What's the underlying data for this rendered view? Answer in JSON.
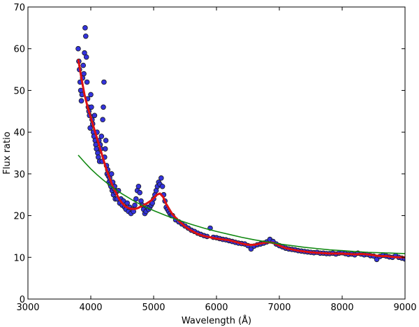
{
  "chart_data": {
    "type": "scatter",
    "title": "",
    "xlabel": "Wavelength (Å)",
    "ylabel": "Flux ratio",
    "xlim": [
      3000,
      9000
    ],
    "ylim": [
      0,
      70
    ],
    "xticks": [
      3000,
      4000,
      5000,
      6000,
      7000,
      8000,
      9000
    ],
    "yticks": [
      0,
      10,
      20,
      30,
      40,
      50,
      60,
      70
    ],
    "grid": false,
    "legend": "none",
    "colors": {
      "scatter_fill": "#3333dd",
      "scatter_edge": "#1a1a1a",
      "smooth_line": "#dd1111",
      "fit_line": "#118811"
    },
    "series": [
      {
        "kind": "scatter",
        "points": [
          [
            3800,
            60
          ],
          [
            3810,
            57
          ],
          [
            3820,
            55
          ],
          [
            3830,
            52
          ],
          [
            3840,
            50
          ],
          [
            3850,
            47.5
          ],
          [
            3860,
            49
          ],
          [
            3870,
            53
          ],
          [
            3880,
            56
          ],
          [
            3890,
            54
          ],
          [
            3900,
            59
          ],
          [
            3910,
            65
          ],
          [
            3920,
            63
          ],
          [
            3930,
            58
          ],
          [
            3940,
            52
          ],
          [
            3950,
            48
          ],
          [
            3960,
            46
          ],
          [
            3970,
            45
          ],
          [
            3980,
            44
          ],
          [
            3990,
            41
          ],
          [
            4000,
            49
          ],
          [
            4010,
            46
          ],
          [
            4020,
            43
          ],
          [
            4030,
            42
          ],
          [
            4040,
            40
          ],
          [
            4050,
            39
          ],
          [
            4060,
            44
          ],
          [
            4070,
            38
          ],
          [
            4080,
            37
          ],
          [
            4090,
            36
          ],
          [
            4100,
            40
          ],
          [
            4110,
            35
          ],
          [
            4120,
            34
          ],
          [
            4130,
            38
          ],
          [
            4140,
            33
          ],
          [
            4150,
            37
          ],
          [
            4160,
            36
          ],
          [
            4170,
            39
          ],
          [
            4180,
            33
          ],
          [
            4190,
            43
          ],
          [
            4200,
            46
          ],
          [
            4210,
            52
          ],
          [
            4220,
            34
          ],
          [
            4230,
            36
          ],
          [
            4240,
            38
          ],
          [
            4250,
            32
          ],
          [
            4260,
            30
          ],
          [
            4270,
            31
          ],
          [
            4280,
            29.5
          ],
          [
            4290,
            28
          ],
          [
            4300,
            29
          ],
          [
            4310,
            27.5
          ],
          [
            4320,
            27
          ],
          [
            4330,
            30
          ],
          [
            4340,
            26
          ],
          [
            4350,
            28
          ],
          [
            4360,
            25
          ],
          [
            4370,
            26.5
          ],
          [
            4380,
            27
          ],
          [
            4390,
            24
          ],
          [
            4400,
            25.5
          ],
          [
            4420,
            24
          ],
          [
            4440,
            26
          ],
          [
            4460,
            23
          ],
          [
            4480,
            24
          ],
          [
            4500,
            22.5
          ],
          [
            4520,
            23.5
          ],
          [
            4540,
            22
          ],
          [
            4560,
            21.5
          ],
          [
            4580,
            23
          ],
          [
            4600,
            21
          ],
          [
            4620,
            22
          ],
          [
            4640,
            20.5
          ],
          [
            4660,
            21.5
          ],
          [
            4680,
            21
          ],
          [
            4700,
            22.5
          ],
          [
            4720,
            24
          ],
          [
            4740,
            26
          ],
          [
            4760,
            27
          ],
          [
            4780,
            25.5
          ],
          [
            4800,
            23.5
          ],
          [
            4820,
            22.5
          ],
          [
            4840,
            21.5
          ],
          [
            4860,
            20.5
          ],
          [
            4880,
            21
          ],
          [
            4900,
            22
          ],
          [
            4920,
            21.5
          ],
          [
            4940,
            22
          ],
          [
            4960,
            22.5
          ],
          [
            4980,
            23
          ],
          [
            5000,
            24
          ],
          [
            5020,
            25
          ],
          [
            5040,
            26
          ],
          [
            5060,
            27
          ],
          [
            5080,
            28
          ],
          [
            5100,
            27.5
          ],
          [
            5120,
            29
          ],
          [
            5140,
            27
          ],
          [
            5160,
            25
          ],
          [
            5180,
            23.5
          ],
          [
            5200,
            22
          ],
          [
            5220,
            21.5
          ],
          [
            5240,
            21
          ],
          [
            5260,
            20.5
          ],
          [
            5280,
            20
          ],
          [
            5300,
            20
          ],
          [
            5350,
            19
          ],
          [
            5400,
            18.5
          ],
          [
            5450,
            18
          ],
          [
            5500,
            17.5
          ],
          [
            5550,
            17
          ],
          [
            5600,
            16.5
          ],
          [
            5650,
            16.2
          ],
          [
            5700,
            15.8
          ],
          [
            5750,
            15.5
          ],
          [
            5800,
            15.2
          ],
          [
            5850,
            15
          ],
          [
            5900,
            17
          ],
          [
            5950,
            14.8
          ],
          [
            6000,
            14.7
          ],
          [
            6050,
            14.5
          ],
          [
            6100,
            14.3
          ],
          [
            6150,
            14.2
          ],
          [
            6200,
            14
          ],
          [
            6250,
            13.8
          ],
          [
            6300,
            13.6
          ],
          [
            6350,
            13.4
          ],
          [
            6400,
            13.3
          ],
          [
            6450,
            13.2
          ],
          [
            6500,
            12.8
          ],
          [
            6550,
            12
          ],
          [
            6600,
            12.7
          ],
          [
            6650,
            13
          ],
          [
            6700,
            13.2
          ],
          [
            6750,
            13.4
          ],
          [
            6800,
            13.7
          ],
          [
            6850,
            14.3
          ],
          [
            6900,
            13.8
          ],
          [
            6950,
            13.2
          ],
          [
            7000,
            12.8
          ],
          [
            7050,
            12.5
          ],
          [
            7100,
            12.2
          ],
          [
            7150,
            12
          ],
          [
            7200,
            11.9
          ],
          [
            7250,
            11.8
          ],
          [
            7300,
            11.6
          ],
          [
            7350,
            11.5
          ],
          [
            7400,
            11.4
          ],
          [
            7450,
            11.3
          ],
          [
            7500,
            11.2
          ],
          [
            7550,
            11.1
          ],
          [
            7600,
            11.2
          ],
          [
            7650,
            11
          ],
          [
            7700,
            11
          ],
          [
            7750,
            10.9
          ],
          [
            7800,
            10.9
          ],
          [
            7850,
            11
          ],
          [
            7900,
            10.8
          ],
          [
            7950,
            11
          ],
          [
            8000,
            11.1
          ],
          [
            8050,
            10.9
          ],
          [
            8100,
            10.7
          ],
          [
            8150,
            10.8
          ],
          [
            8200,
            10.6
          ],
          [
            8250,
            11
          ],
          [
            8300,
            10.8
          ],
          [
            8350,
            10.6
          ],
          [
            8400,
            10.7
          ],
          [
            8450,
            10.4
          ],
          [
            8500,
            10.3
          ],
          [
            8550,
            9.5
          ],
          [
            8600,
            10.2
          ],
          [
            8650,
            10.5
          ],
          [
            8700,
            10.3
          ],
          [
            8750,
            10.1
          ],
          [
            8800,
            10
          ],
          [
            8850,
            10.4
          ],
          [
            8900,
            10
          ],
          [
            8950,
            9.8
          ],
          [
            9000,
            9.6
          ]
        ]
      },
      {
        "kind": "line",
        "points": [
          [
            3800,
            57.5
          ],
          [
            3850,
            53
          ],
          [
            3900,
            49
          ],
          [
            3950,
            46
          ],
          [
            4000,
            43.5
          ],
          [
            4050,
            41
          ],
          [
            4100,
            38.5
          ],
          [
            4150,
            36
          ],
          [
            4200,
            33.5
          ],
          [
            4250,
            31
          ],
          [
            4300,
            29
          ],
          [
            4350,
            27
          ],
          [
            4400,
            25.5
          ],
          [
            4450,
            24
          ],
          [
            4500,
            23
          ],
          [
            4550,
            22.2
          ],
          [
            4600,
            21.8
          ],
          [
            4650,
            21.6
          ],
          [
            4700,
            21.6
          ],
          [
            4750,
            21.8
          ],
          [
            4800,
            22.2
          ],
          [
            4850,
            22.6
          ],
          [
            4900,
            23
          ],
          [
            4950,
            23.5
          ],
          [
            5000,
            24.2
          ],
          [
            5050,
            25
          ],
          [
            5100,
            25.3
          ],
          [
            5150,
            24.5
          ],
          [
            5200,
            22.8
          ],
          [
            5250,
            21.5
          ],
          [
            5300,
            20.3
          ],
          [
            5400,
            18.7
          ],
          [
            5500,
            17.4
          ],
          [
            5600,
            16.4
          ],
          [
            5700,
            15.6
          ],
          [
            5800,
            15.1
          ],
          [
            5900,
            14.8
          ],
          [
            6000,
            14.5
          ],
          [
            6100,
            14.3
          ],
          [
            6200,
            14.1
          ],
          [
            6300,
            13.7
          ],
          [
            6400,
            13.3
          ],
          [
            6500,
            13
          ],
          [
            6600,
            13
          ],
          [
            6700,
            13.3
          ],
          [
            6800,
            13.6
          ],
          [
            6900,
            13.5
          ],
          [
            7000,
            12.8
          ],
          [
            7100,
            12.2
          ],
          [
            7200,
            11.9
          ],
          [
            7300,
            11.6
          ],
          [
            7400,
            11.4
          ],
          [
            7500,
            11.2
          ],
          [
            7600,
            11.1
          ],
          [
            7700,
            11
          ],
          [
            7800,
            10.9
          ],
          [
            7900,
            10.9
          ],
          [
            8000,
            10.9
          ],
          [
            8100,
            10.8
          ],
          [
            8200,
            10.7
          ],
          [
            8300,
            10.8
          ],
          [
            8400,
            10.7
          ],
          [
            8500,
            10.5
          ],
          [
            8600,
            10.3
          ],
          [
            8700,
            10.3
          ],
          [
            8800,
            10.1
          ],
          [
            8900,
            10
          ],
          [
            9000,
            10
          ]
        ]
      },
      {
        "kind": "line",
        "points": [
          [
            3800,
            34.5
          ],
          [
            3900,
            32.8
          ],
          [
            4000,
            31.2
          ],
          [
            4100,
            29.8
          ],
          [
            4200,
            28.5
          ],
          [
            4300,
            27.3
          ],
          [
            4400,
            26.2
          ],
          [
            4500,
            25.2
          ],
          [
            4600,
            24.3
          ],
          [
            4700,
            23.4
          ],
          [
            4800,
            22.6
          ],
          [
            4900,
            21.9
          ],
          [
            5000,
            21.2
          ],
          [
            5200,
            20
          ],
          [
            5400,
            18.9
          ],
          [
            5600,
            17.9
          ],
          [
            5800,
            17
          ],
          [
            6000,
            16.2
          ],
          [
            6200,
            15.5
          ],
          [
            6400,
            14.8
          ],
          [
            6600,
            14.2
          ],
          [
            6800,
            13.7
          ],
          [
            7000,
            13.2
          ],
          [
            7200,
            12.8
          ],
          [
            7400,
            12.4
          ],
          [
            7600,
            12.1
          ],
          [
            7800,
            11.8
          ],
          [
            8000,
            11.6
          ],
          [
            8200,
            11.4
          ],
          [
            8400,
            11.2
          ],
          [
            8600,
            11.1
          ],
          [
            8800,
            11
          ],
          [
            9000,
            10.9
          ]
        ]
      }
    ]
  }
}
